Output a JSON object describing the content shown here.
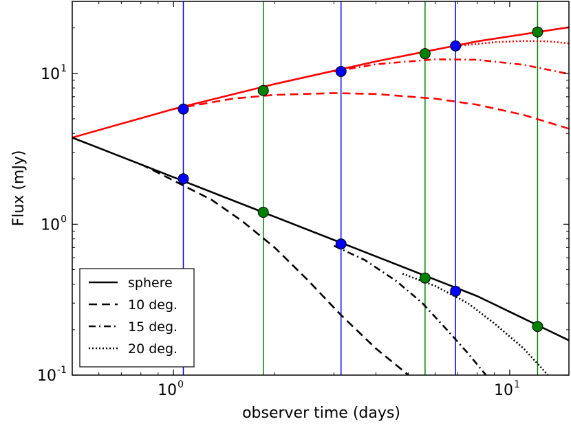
{
  "chart_data": {
    "type": "line",
    "title": "",
    "xlabel": "observer time (days)",
    "ylabel": "Flux (mJy)",
    "xscale": "log",
    "yscale": "log",
    "xlim": [
      0.5,
      15
    ],
    "ylim": [
      0.1,
      30
    ],
    "x_ticks": [
      {
        "value": 1,
        "base": "10",
        "exp": "0"
      },
      {
        "value": 10,
        "base": "10",
        "exp": "1"
      }
    ],
    "y_ticks": [
      {
        "value": 0.1,
        "base": "10",
        "exp": "-1"
      },
      {
        "value": 1,
        "base": "10",
        "exp": "0"
      },
      {
        "value": 10,
        "base": "10",
        "exp": "1"
      }
    ],
    "legend": {
      "location": "lower-left",
      "entries": [
        {
          "label": "sphere",
          "style": "solid"
        },
        {
          "label": "10 deg.",
          "style": "dashed"
        },
        {
          "label": "15 deg.",
          "style": "dashdot"
        },
        {
          "label": "20 deg.",
          "style": "dotted"
        }
      ]
    },
    "series": [
      {
        "name": "red sphere",
        "color": "#ff0000",
        "style": "solid",
        "x": [
          0.5,
          1,
          2,
          4,
          8,
          15
        ],
        "y": [
          3.75,
          5.8,
          8.5,
          12.0,
          16.3,
          20.2
        ]
      },
      {
        "name": "red 10 deg.",
        "color": "#ff0000",
        "style": "dashed",
        "x": [
          1,
          1.5,
          2,
          3,
          4,
          6,
          8,
          11,
          15
        ],
        "y": [
          5.8,
          6.8,
          7.2,
          7.4,
          7.3,
          6.8,
          6.2,
          5.3,
          4.3
        ]
      },
      {
        "name": "red 15 deg.",
        "color": "#ff0000",
        "style": "dashdot",
        "x": [
          3,
          4,
          6,
          8,
          11,
          15
        ],
        "y": [
          10.3,
          11.5,
          12.4,
          12.3,
          11.4,
          9.9
        ]
      },
      {
        "name": "red 20 deg.",
        "color": "#ff0000",
        "style": "dotted",
        "x": [
          7,
          9,
          11,
          13,
          15
        ],
        "y": [
          15.2,
          16.1,
          16.4,
          16.3,
          15.8
        ]
      },
      {
        "name": "black sphere",
        "color": "#000000",
        "style": "solid",
        "x": [
          0.5,
          1,
          2,
          4,
          8,
          15
        ],
        "y": [
          3.75,
          2.05,
          1.12,
          0.612,
          0.334,
          0.17
        ]
      },
      {
        "name": "black 10 deg.",
        "color": "#000000",
        "style": "dashed",
        "x": [
          0.8,
          1,
          1.3,
          1.6,
          2,
          2.5,
          3.15,
          4,
          5
        ],
        "y": [
          2.5,
          1.95,
          1.45,
          1.05,
          0.7,
          0.43,
          0.25,
          0.15,
          0.1
        ]
      },
      {
        "name": "black 15 deg.",
        "color": "#000000",
        "style": "dashdot",
        "x": [
          3.0,
          3.7,
          4.6,
          5.5,
          6.5,
          7.5,
          8.5
        ],
        "y": [
          0.72,
          0.58,
          0.42,
          0.3,
          0.2,
          0.14,
          0.1
        ]
      },
      {
        "name": "black 20 deg.",
        "color": "#000000",
        "style": "dotted",
        "x": [
          4.8,
          6,
          7.5,
          9,
          11,
          13
        ],
        "y": [
          0.47,
          0.39,
          0.3,
          0.22,
          0.15,
          0.1
        ]
      }
    ],
    "markers": [
      {
        "x": 1.07,
        "y_top": 5.8,
        "y_bottom": 2.0,
        "color": "#0000ff"
      },
      {
        "x": 3.15,
        "y_top": 10.3,
        "y_bottom": 0.74,
        "color": "#0000ff"
      },
      {
        "x": 6.9,
        "y_top": 15.2,
        "y_bottom": 0.36,
        "color": "#0000ff"
      },
      {
        "x": 1.85,
        "y_top": 7.7,
        "y_bottom": 1.2,
        "color": "#008000"
      },
      {
        "x": 5.6,
        "y_top": 13.5,
        "y_bottom": 0.44,
        "color": "#008000"
      },
      {
        "x": 12.1,
        "y_top": 18.8,
        "y_bottom": 0.21,
        "color": "#008000"
      }
    ]
  }
}
